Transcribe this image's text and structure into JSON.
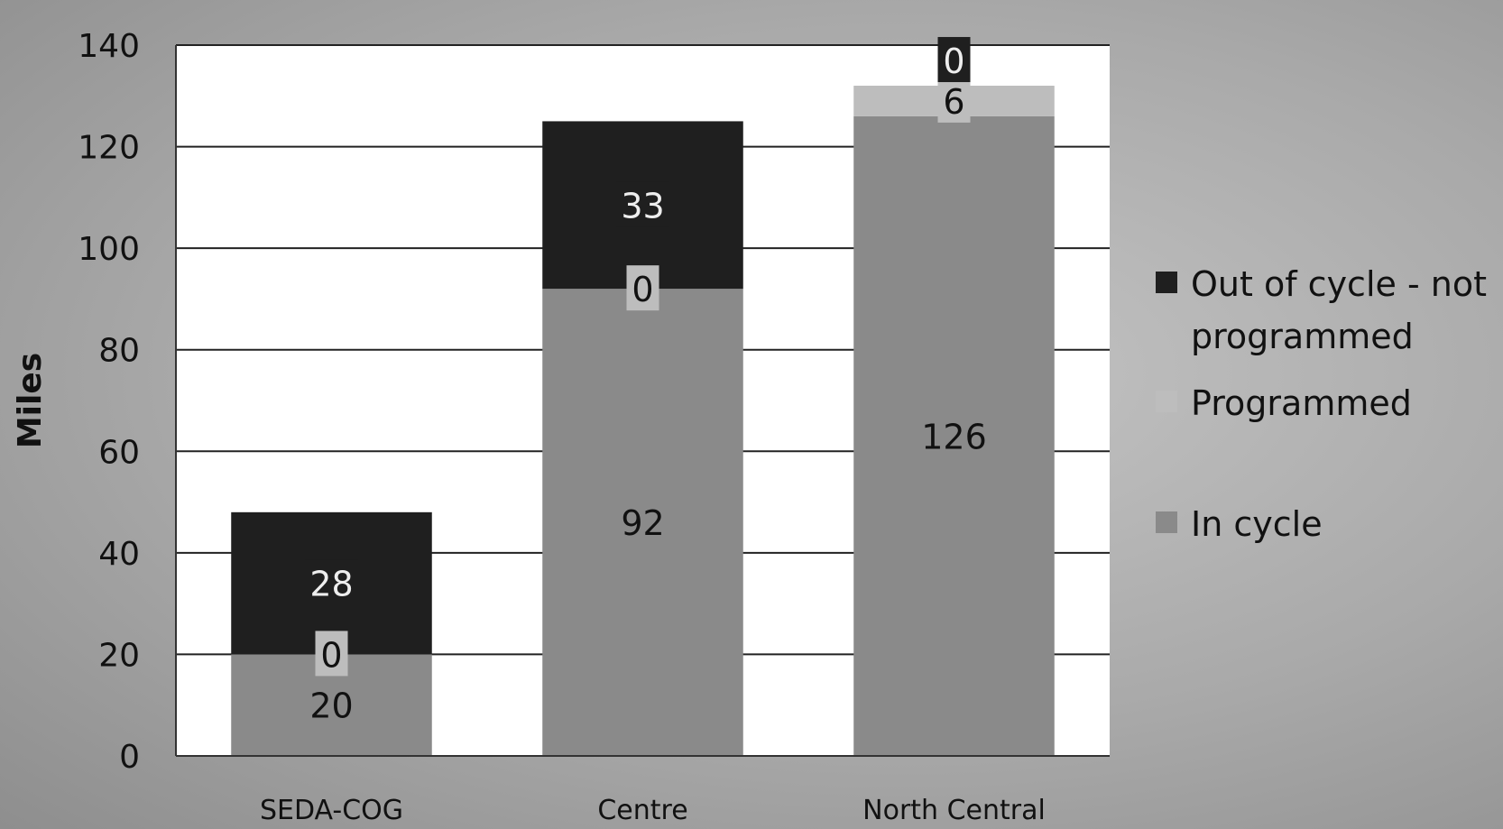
{
  "chart_data": {
    "type": "bar",
    "stacked": true,
    "categories": [
      "SEDA-COG",
      "Centre",
      "North Central"
    ],
    "series": [
      {
        "name": "In cycle",
        "values": [
          20,
          92,
          126
        ],
        "color": "#8a8a8a",
        "label_color": "#111111",
        "label_bg": ""
      },
      {
        "name": "Programmed",
        "values": [
          0,
          0,
          6
        ],
        "color": "#bdbdbd",
        "label_color": "#111111",
        "label_bg": "#bdbdbd"
      },
      {
        "name": "Out of cycle - not programmed",
        "values": [
          28,
          33,
          0
        ],
        "color": "#1f1f1f",
        "label_color": "#eeeeee",
        "label_bg": "#1f1f1f"
      }
    ],
    "legend_order": [
      "Out of cycle - not programmed",
      "Programmed",
      "In cycle"
    ],
    "legend_lines": [
      [
        "Out of cycle - not",
        "programmed"
      ],
      [
        "Programmed"
      ],
      [
        "In cycle"
      ]
    ],
    "title": "",
    "xlabel": "",
    "ylabel": "Miles",
    "ylim": [
      0,
      140
    ],
    "yticks": [
      0,
      20,
      40,
      60,
      80,
      100,
      120,
      140
    ],
    "grid": true,
    "legend_position": "right"
  }
}
